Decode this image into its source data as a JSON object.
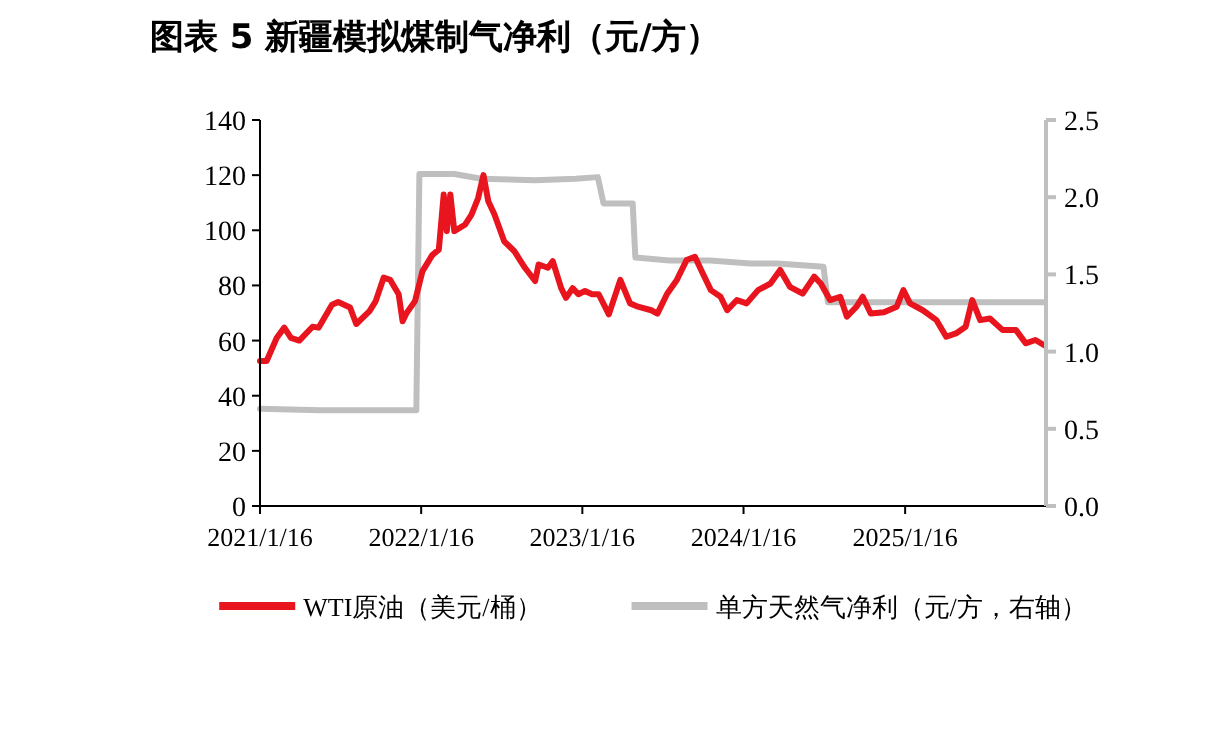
{
  "chart_data": {
    "type": "line",
    "title": "图表 5 新疆模拟煤制气净利（元/方）",
    "xlim": [
      "2021-01-16",
      "2025-12-01"
    ],
    "xticks": [
      {
        "value": "2021-01-16",
        "label": "2021/1/16"
      },
      {
        "value": "2022-01-16",
        "label": "2022/1/16"
      },
      {
        "value": "2023-01-16",
        "label": "2023/1/16"
      },
      {
        "value": "2024-01-16",
        "label": "2024/1/16"
      },
      {
        "value": "2025-01-16",
        "label": "2025/1/16"
      }
    ],
    "ylim": [
      0,
      140
    ],
    "yticks": [
      0,
      20,
      40,
      60,
      80,
      100,
      120,
      140
    ],
    "y2lim": [
      0,
      2.5
    ],
    "y2ticks": [
      {
        "value": 0,
        "label": "0.0"
      },
      {
        "value": 0.5,
        "label": "0.5"
      },
      {
        "value": 1,
        "label": "1.0"
      },
      {
        "value": 1.5,
        "label": "1.5"
      },
      {
        "value": 2,
        "label": "2.0"
      },
      {
        "value": 2.5,
        "label": "2.5"
      }
    ],
    "grid": false,
    "legend": "bottom",
    "series": [
      {
        "name": "WTI原油（美元/桶）",
        "color": "#e8141e",
        "x": [
          "2021-01-16",
          "2021-01-31",
          "2021-02-23",
          "2021-03-12",
          "2021-03-27",
          "2021-04-15",
          "2021-05-15",
          "2021-05-29",
          "2021-06-28",
          "2021-07-12",
          "2021-08-08",
          "2021-08-22",
          "2021-09-21",
          "2021-10-05",
          "2021-10-23",
          "2021-11-07",
          "2021-11-26",
          "2021-12-05",
          "2021-12-14",
          "2022-01-02",
          "2022-01-19",
          "2022-02-10",
          "2022-02-25",
          "2022-03-08",
          "2022-03-15",
          "2022-03-23",
          "2022-04-01",
          "2022-04-25",
          "2022-05-10",
          "2022-05-25",
          "2022-06-06",
          "2022-06-17",
          "2022-07-01",
          "2022-07-23",
          "2022-08-15",
          "2022-09-08",
          "2022-10-01",
          "2022-10-09",
          "2022-10-30",
          "2022-11-10",
          "2022-11-29",
          "2022-12-10",
          "2022-12-25",
          "2023-01-07",
          "2023-01-22",
          "2023-02-07",
          "2023-02-22",
          "2023-03-17",
          "2023-04-12",
          "2023-05-04",
          "2023-05-22",
          "2023-06-21",
          "2023-07-05",
          "2023-07-27",
          "2023-08-18",
          "2023-09-09",
          "2023-09-28",
          "2023-10-12",
          "2023-11-03",
          "2023-11-25",
          "2023-12-10",
          "2024-01-01",
          "2024-01-23",
          "2024-02-18",
          "2024-03-17",
          "2024-04-08",
          "2024-04-30",
          "2024-05-29",
          "2024-06-24",
          "2024-07-09",
          "2024-07-30",
          "2024-08-22",
          "2024-09-06",
          "2024-09-28",
          "2024-10-12",
          "2024-10-30",
          "2024-11-29",
          "2024-12-28",
          "2025-01-12",
          "2025-01-27",
          "2025-02-25",
          "2025-03-28",
          "2025-04-19",
          "2025-05-11",
          "2025-06-02",
          "2025-06-17",
          "2025-07-05",
          "2025-07-27",
          "2025-08-25",
          "2025-09-24",
          "2025-10-16",
          "2025-11-07",
          "2025-11-28"
        ],
        "values": [
          52.6,
          52.6,
          61,
          64.7,
          61,
          60,
          65,
          64.7,
          73,
          74,
          72,
          66,
          70.7,
          74.3,
          82.8,
          82,
          76.8,
          67,
          70,
          74.3,
          85.2,
          91,
          93,
          113,
          99.7,
          113,
          99.7,
          102,
          105.7,
          111.7,
          120,
          110.5,
          105.7,
          96,
          92.4,
          86.4,
          81.6,
          87.6,
          86.4,
          88.8,
          79,
          75.5,
          79,
          76.8,
          78,
          76.8,
          76.8,
          69.5,
          82,
          73.5,
          72.3,
          71,
          69.8,
          77,
          82,
          89.2,
          90.4,
          85.6,
          78.3,
          75.9,
          71,
          74.7,
          73.5,
          78.3,
          80.7,
          85.6,
          79.5,
          77,
          83.2,
          80.7,
          74.7,
          75.9,
          68.7,
          72.3,
          75.9,
          69.8,
          70.3,
          72.3,
          78.3,
          73.5,
          71,
          67.4,
          61.4,
          62.6,
          65,
          74.7,
          67.4,
          68,
          63.8,
          63.8,
          59,
          60.2,
          58.2
        ]
      },
      {
        "name": "单方天然气净利（元/方，右轴）",
        "color": "#bfbfbf",
        "axis": "y2",
        "x": [
          "2021-01-16",
          "2021-06-01",
          "2021-09-01",
          "2022-01-05",
          "2022-01-12",
          "2022-04-01",
          "2022-06-01",
          "2022-10-01",
          "2023-01-01",
          "2023-02-20",
          "2023-03-05",
          "2023-05-10",
          "2023-05-16",
          "2023-08-01",
          "2023-11-01",
          "2024-02-01",
          "2024-04-01",
          "2024-07-15",
          "2024-07-25",
          "2025-11-28"
        ],
        "values": [
          0.63,
          0.62,
          0.62,
          0.62,
          2.15,
          2.15,
          2.12,
          2.11,
          2.12,
          2.13,
          1.96,
          1.96,
          1.61,
          1.59,
          1.59,
          1.57,
          1.57,
          1.55,
          1.32,
          1.32
        ]
      }
    ]
  }
}
